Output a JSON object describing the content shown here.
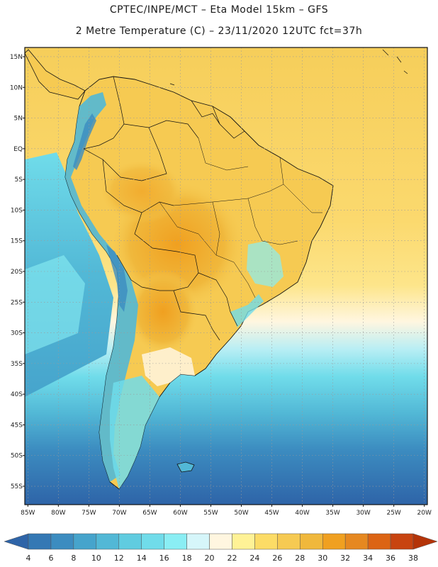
{
  "header": {
    "line1": "CPTEC/INPE/MCT –  Eta Model 15km – GFS",
    "line2": "2 Metre Temperature (C) – 23/11/2020 12UTC fct=37h"
  },
  "map": {
    "lat_labels": [
      "15N",
      "10N",
      "5N",
      "EQ",
      "5S",
      "10S",
      "15S",
      "20S",
      "25S",
      "30S",
      "35S",
      "40S",
      "45S",
      "50S",
      "55S"
    ],
    "lon_labels": [
      "85W",
      "80W",
      "75W",
      "70W",
      "65W",
      "60W",
      "55W",
      "50W",
      "45W",
      "40W",
      "35W",
      "30W",
      "25W",
      "20W"
    ]
  },
  "colorbar": {
    "values": [
      "4",
      "6",
      "8",
      "10",
      "12",
      "14",
      "16",
      "18",
      "20",
      "22",
      "24",
      "26",
      "28",
      "30",
      "32",
      "34",
      "36",
      "38"
    ],
    "colors": [
      "#2e64a8",
      "#3478b4",
      "#3c8cc0",
      "#46a4cc",
      "#52b8d6",
      "#60cce0",
      "#70dcea",
      "#8aeef4",
      "#d6f6fa",
      "#fff6e0",
      "#fff296",
      "#fcdc66",
      "#f6ca52",
      "#f0b83c",
      "#f0a020",
      "#e68820",
      "#dc6414",
      "#c84410",
      "#b43408"
    ]
  },
  "palette": {
    "ocean_warm": "#f6ce5a",
    "ocean_mid": "#fde58a",
    "ocean_cool": "#b8eef4",
    "ocean_cold": "#46a4cc",
    "ocean_frigid": "#2e64a8",
    "land_warm": "#f6ca52",
    "land_hot": "#f0a020",
    "andes_cold": "#52b8d6",
    "border": "#111111",
    "grid": "#9a9a9a"
  }
}
